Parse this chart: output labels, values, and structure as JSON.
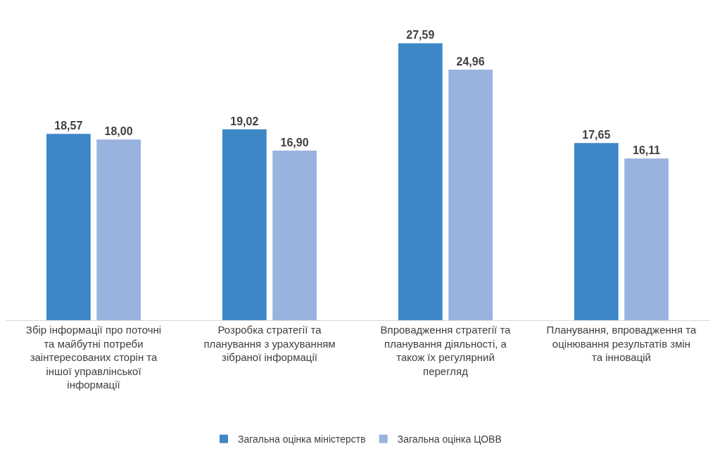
{
  "chart_data": {
    "type": "bar",
    "categories": [
      "Збір інформації про поточні та майбутні потреби заінтересованих сторін та іншої управлінської інформації",
      "Розробка стратегії та планування з урахуванням зібраної інформації",
      "Впровадження стратегії та планування діяльності, а також їх регулярний перегляд",
      "Планування, впровадження та оцінювання результатів змін та інновацій"
    ],
    "series": [
      {
        "name": "Загальна оцінка міністерств",
        "color": "#3d87c7",
        "values": [
          18.57,
          19.02,
          27.59,
          17.65
        ],
        "value_labels": [
          "18,57",
          "19,02",
          "27,59",
          "17,65"
        ]
      },
      {
        "name": "Загальна оцінка ЦОВВ",
        "color": "#98b3de",
        "values": [
          18.0,
          16.9,
          24.96,
          16.11
        ],
        "value_labels": [
          "18,00",
          "16,90",
          "24,96",
          "16,11"
        ]
      }
    ],
    "grid": false,
    "legend": "bottom"
  }
}
